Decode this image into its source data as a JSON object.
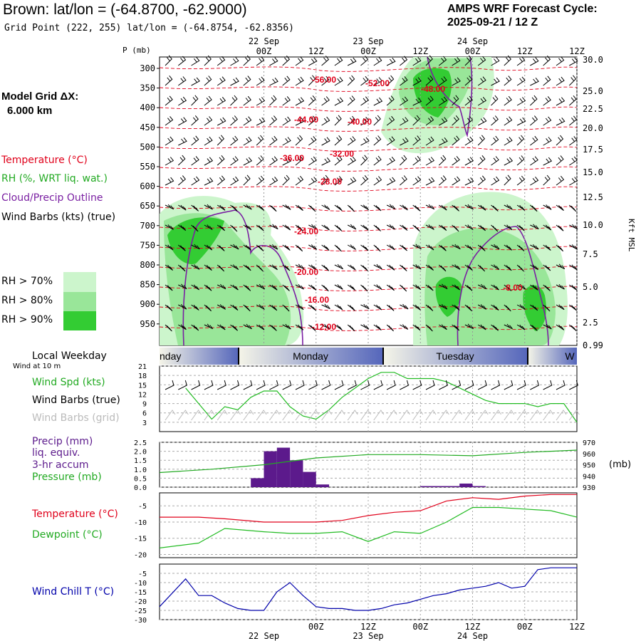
{
  "header": {
    "title": "Brown:  lat/lon = (-64.8700, -62.9000)",
    "grid_point": "Grid Point (222, 255) lat/lon = (-64.8754, -62.8356)",
    "cycle_line1": "AMPS WRF Forecast Cycle:",
    "cycle_line2": "2025-09-21 / 12  Z",
    "model_grid_line1": "Model Grid ΔX:",
    "model_grid_line2": "6.000 km"
  },
  "legend": {
    "temperature": "Temperature (°C)",
    "rh": "RH (%, WRT liq. wat.)",
    "cloud": "Cloud/Precip Outline",
    "wind_barbs": "Wind Barbs (kts) (true)",
    "rh70": "RH > 70%",
    "rh80": "RH > 80%",
    "rh90": "RH > 90%",
    "local_weekday": "Local Weekday",
    "wind_10m": "Wind at 10 m",
    "wind_spd": "Wind Spd (kts)",
    "wind_barbs_true": "Wind Barbs (true)",
    "wind_barbs_grid": "Wind Barbs (grid)",
    "precip1": "Precip (mm)",
    "precip2": "liq. equiv.",
    "precip3": "3-hr accum",
    "pressure": "Pressure (mb)",
    "temperature2": "Temperature (°C)",
    "dewpoint": "Dewpoint (°C)",
    "wind_chill": "Wind Chill T (°C)"
  },
  "colors": {
    "temp": "#e0001a",
    "rh70": "#ccf5cc",
    "rh80": "#99e699",
    "rh90": "#33cc33",
    "cloud": "#7a1fa2",
    "wind_speed": "#22bb22",
    "precip": "#5c1a8c",
    "pressure": "#22aa22",
    "dewpoint": "#22bb22",
    "wind_chill": "#0000aa",
    "weekday_blue": "#5566bb"
  },
  "time_axis": {
    "top_tick_labels": [
      "00Z",
      "12Z",
      "00Z",
      "12Z",
      "00Z",
      "12Z"
    ],
    "top_date_labels": [
      "22 Sep",
      "23 Sep",
      "24 Sep"
    ],
    "bottom_tick_labels": [
      "00Z",
      "12Z",
      "00Z",
      "12Z",
      "00Z",
      "12Z"
    ],
    "bottom_date_labels": [
      "22 Sep",
      "23 Sep",
      "24 Sep"
    ]
  },
  "weekday_bar": {
    "labels": [
      "nday",
      "Monday",
      "Tuesday",
      "W"
    ]
  },
  "chart_data": [
    {
      "type": "area",
      "name": "cross-section",
      "ylabel": "P (mb)",
      "y2label": "Kft MSL",
      "p_ticks": [
        "300",
        "350",
        "400",
        "450",
        "500",
        "550",
        "600",
        "650",
        "700",
        "750",
        "800",
        "850",
        "900",
        "950"
      ],
      "kft_ticks": [
        "30.0",
        "25.0",
        "22.5",
        "20.0",
        "17.5",
        "15.0",
        "12.5",
        "10.0",
        "7.5",
        "5.0",
        "2.5",
        "0.99"
      ],
      "temp_labels": [
        "-56.00",
        "-52.00",
        "-48.00",
        "-44.00",
        "-40.00",
        "-36.00",
        "-32.00",
        "-28.00",
        "-24.00",
        "-20.00",
        "-16.00",
        "-12.00",
        "-8.00"
      ]
    },
    {
      "type": "line",
      "name": "wind speed",
      "ylabel": "Wind Spd (kts)",
      "y_ticks": [
        "21",
        "18",
        "15",
        "12",
        "9",
        "6",
        "3"
      ],
      "ylim": [
        0,
        21
      ],
      "x_hours": [
        -18,
        -15,
        -12,
        -9,
        -6,
        -3,
        0,
        3,
        6,
        9,
        12,
        15,
        18,
        21,
        24,
        27,
        30,
        33,
        36,
        39,
        42,
        45,
        48,
        51,
        54,
        57,
        60,
        63,
        66,
        69,
        72
      ],
      "values": [
        14,
        9,
        4,
        8,
        7,
        11,
        13,
        13,
        8,
        5,
        4,
        7,
        11,
        14,
        17,
        19,
        19,
        17,
        17,
        17,
        16,
        14,
        12,
        10,
        9,
        9,
        9,
        8,
        9,
        9,
        3
      ]
    },
    {
      "type": "bar",
      "name": "precip & pressure",
      "y_ticks": [
        "2.5",
        "2.0",
        "1.5",
        "1.0",
        "0.5",
        "0.0"
      ],
      "y2_ticks": [
        "970",
        "960",
        "950",
        "940",
        "930"
      ],
      "y2label": "(mb)",
      "ylim": [
        0,
        2.5
      ],
      "precip_bars": [
        {
          "h0": -3,
          "h1": 0,
          "value": 0.5
        },
        {
          "h0": 0,
          "h1": 3,
          "value": 2.0
        },
        {
          "h0": 3,
          "h1": 6,
          "value": 2.2
        },
        {
          "h0": 6,
          "h1": 9,
          "value": 1.5
        },
        {
          "h0": 9,
          "h1": 12,
          "value": 0.85
        },
        {
          "h0": 12,
          "h1": 15,
          "value": 0.15
        },
        {
          "h0": 36,
          "h1": 45,
          "value": 0.06
        },
        {
          "h0": 45,
          "h1": 48,
          "value": 0.2
        },
        {
          "h0": 48,
          "h1": 51,
          "value": 0.06
        }
      ],
      "pressure_x": [
        -24,
        -12,
        0,
        12,
        24,
        36,
        48,
        60,
        72
      ],
      "pressure": [
        943,
        946,
        950,
        956,
        959,
        959,
        958,
        961,
        963
      ]
    },
    {
      "type": "line",
      "name": "temperature & dewpoint",
      "y_ticks": [
        "-5",
        "-10",
        "-15",
        "-20"
      ],
      "ylim": [
        -21,
        -1
      ],
      "x_hours": [
        -24,
        -15,
        -9,
        0,
        6,
        12,
        18,
        24,
        30,
        36,
        42,
        48,
        54,
        60,
        66,
        72
      ],
      "temperature": [
        -8.5,
        -8.5,
        -9,
        -10,
        -10,
        -10,
        -9.5,
        -8,
        -7,
        -6.5,
        -3.5,
        -2.5,
        -3,
        -2,
        -1.5,
        -1.5
      ],
      "dewpoint": [
        -18,
        -16.5,
        -12,
        -13,
        -13.5,
        -13.5,
        -13,
        -16,
        -13,
        -13.5,
        -10,
        -5.5,
        -5.5,
        -6,
        -6.5,
        -8.5
      ]
    },
    {
      "type": "line",
      "name": "wind chill",
      "y_ticks": [
        "-5",
        "-10",
        "-15",
        "-20",
        "-25",
        "-30"
      ],
      "ylim": [
        -30,
        0
      ],
      "x_hours": [
        -24,
        -18,
        -15,
        -12,
        -9,
        -6,
        -3,
        0,
        3,
        6,
        9,
        12,
        15,
        18,
        21,
        24,
        27,
        30,
        33,
        36,
        39,
        42,
        45,
        48,
        51,
        54,
        57,
        60,
        63,
        66,
        69,
        72
      ],
      "values": [
        -23,
        -8,
        -17,
        -17,
        -21,
        -24,
        -25,
        -25,
        -15,
        -10,
        -17,
        -23,
        -24,
        -24,
        -25,
        -25,
        -24,
        -22,
        -21,
        -19,
        -17,
        -16,
        -14,
        -13,
        -12,
        -10,
        -13,
        -12,
        -3,
        -2,
        -2,
        -2
      ]
    }
  ]
}
